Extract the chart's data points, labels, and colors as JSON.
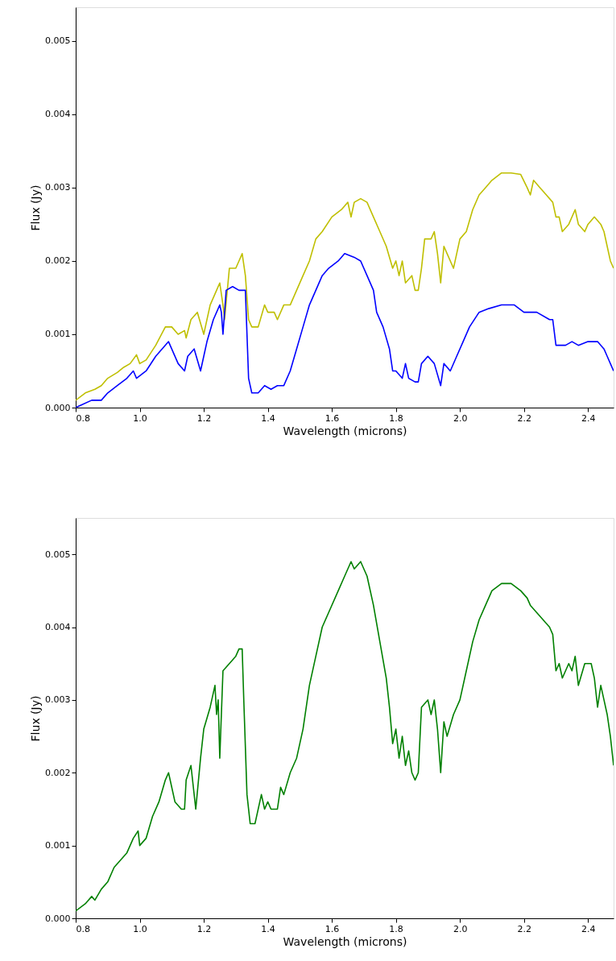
{
  "chart_data": [
    {
      "type": "line",
      "xlabel": "Wavelength (microns)",
      "ylabel": "Flux (Jy)",
      "xlim": [
        0.8,
        2.48
      ],
      "ylim": [
        0,
        0.00546
      ],
      "grid": false,
      "legend": false,
      "marker": "none",
      "line_style": "solid",
      "xticks": [
        {
          "value": 0.8,
          "label": "0.8"
        },
        {
          "value": 1.0,
          "label": "1.0"
        },
        {
          "value": 1.2,
          "label": "1.2"
        },
        {
          "value": 1.4,
          "label": "1.4"
        },
        {
          "value": 1.6,
          "label": "1.6"
        },
        {
          "value": 1.8,
          "label": "1.8"
        },
        {
          "value": 2.0,
          "label": "2.0"
        },
        {
          "value": 2.2,
          "label": "2.2"
        },
        {
          "value": 2.4,
          "label": "2.4"
        }
      ],
      "yticks": [
        {
          "value": 0,
          "label": "0.000"
        },
        {
          "value": 0.001,
          "label": "0.001"
        },
        {
          "value": 0.002,
          "label": "0.002"
        },
        {
          "value": 0.003,
          "label": "0.003"
        },
        {
          "value": 0.004,
          "label": "0.004"
        },
        {
          "value": 0.005,
          "label": "0.005"
        }
      ],
      "series": [
        {
          "color": "#bfbf00",
          "x": [
            0.8,
            0.83,
            0.86,
            0.88,
            0.9,
            0.93,
            0.95,
            0.97,
            0.99,
            1.0,
            1.02,
            1.05,
            1.08,
            1.1,
            1.12,
            1.14,
            1.145,
            1.16,
            1.18,
            1.2,
            1.22,
            1.24,
            1.25,
            1.26,
            1.265,
            1.28,
            1.3,
            1.31,
            1.32,
            1.33,
            1.34,
            1.35,
            1.37,
            1.39,
            1.4,
            1.42,
            1.43,
            1.45,
            1.47,
            1.49,
            1.51,
            1.53,
            1.55,
            1.57,
            1.6,
            1.63,
            1.65,
            1.66,
            1.67,
            1.69,
            1.71,
            1.73,
            1.75,
            1.77,
            1.79,
            1.8,
            1.81,
            1.82,
            1.83,
            1.85,
            1.86,
            1.87,
            1.88,
            1.89,
            1.91,
            1.92,
            1.93,
            1.94,
            1.95,
            1.96,
            1.98,
            2.0,
            2.02,
            2.04,
            2.06,
            2.08,
            2.1,
            2.13,
            2.16,
            2.19,
            2.21,
            2.22,
            2.23,
            2.25,
            2.27,
            2.29,
            2.3,
            2.31,
            2.32,
            2.34,
            2.36,
            2.37,
            2.39,
            2.4,
            2.42,
            2.44,
            2.45,
            2.46,
            2.47,
            2.48
          ],
          "values": [
            0.0001,
            0.0002,
            0.00025,
            0.0003,
            0.0004,
            0.00048,
            0.00055,
            0.0006,
            0.00072,
            0.0006,
            0.00065,
            0.00085,
            0.0011,
            0.0011,
            0.001,
            0.00105,
            0.00095,
            0.0012,
            0.0013,
            0.001,
            0.0014,
            0.0016,
            0.0017,
            0.0014,
            0.0012,
            0.0019,
            0.0019,
            0.002,
            0.0021,
            0.0018,
            0.0012,
            0.0011,
            0.0011,
            0.0014,
            0.0013,
            0.0013,
            0.0012,
            0.0014,
            0.0014,
            0.0016,
            0.0018,
            0.002,
            0.0023,
            0.0024,
            0.0026,
            0.0027,
            0.0028,
            0.0026,
            0.0028,
            0.00285,
            0.0028,
            0.0026,
            0.0024,
            0.0022,
            0.0019,
            0.002,
            0.0018,
            0.002,
            0.0017,
            0.0018,
            0.0016,
            0.0016,
            0.0019,
            0.0023,
            0.0023,
            0.0024,
            0.0021,
            0.0017,
            0.0022,
            0.0021,
            0.0019,
            0.0023,
            0.0024,
            0.0027,
            0.0029,
            0.003,
            0.0031,
            0.0032,
            0.0032,
            0.00318,
            0.003,
            0.0029,
            0.0031,
            0.003,
            0.0029,
            0.0028,
            0.0026,
            0.0026,
            0.0024,
            0.0025,
            0.0027,
            0.0025,
            0.0024,
            0.0025,
            0.0026,
            0.0025,
            0.0024,
            0.0022,
            0.002,
            0.0019
          ]
        },
        {
          "color": "#0000ff",
          "x": [
            0.8,
            0.85,
            0.88,
            0.9,
            0.93,
            0.96,
            0.98,
            0.99,
            1.02,
            1.05,
            1.09,
            1.12,
            1.14,
            1.15,
            1.17,
            1.19,
            1.21,
            1.23,
            1.25,
            1.255,
            1.26,
            1.27,
            1.29,
            1.31,
            1.33,
            1.34,
            1.35,
            1.37,
            1.39,
            1.41,
            1.43,
            1.45,
            1.47,
            1.49,
            1.51,
            1.53,
            1.55,
            1.57,
            1.59,
            1.62,
            1.64,
            1.67,
            1.69,
            1.71,
            1.73,
            1.74,
            1.76,
            1.78,
            1.79,
            1.8,
            1.82,
            1.83,
            1.84,
            1.86,
            1.87,
            1.88,
            1.9,
            1.92,
            1.94,
            1.95,
            1.97,
            1.99,
            2.01,
            2.03,
            2.06,
            2.09,
            2.13,
            2.17,
            2.2,
            2.24,
            2.28,
            2.29,
            2.3,
            2.33,
            2.35,
            2.37,
            2.4,
            2.43,
            2.45,
            2.46,
            2.47,
            2.48
          ],
          "values": [
            0.0,
            0.0001,
            0.0001,
            0.0002,
            0.0003,
            0.0004,
            0.0005,
            0.0004,
            0.0005,
            0.0007,
            0.0009,
            0.0006,
            0.0005,
            0.0007,
            0.0008,
            0.0005,
            0.0009,
            0.0012,
            0.0014,
            0.0013,
            0.001,
            0.0016,
            0.00165,
            0.0016,
            0.0016,
            0.0004,
            0.0002,
            0.0002,
            0.0003,
            0.00025,
            0.0003,
            0.0003,
            0.0005,
            0.0008,
            0.0011,
            0.0014,
            0.0016,
            0.0018,
            0.0019,
            0.002,
            0.0021,
            0.00205,
            0.002,
            0.0018,
            0.0016,
            0.0013,
            0.0011,
            0.0008,
            0.0005,
            0.0005,
            0.0004,
            0.0006,
            0.0004,
            0.00035,
            0.00035,
            0.0006,
            0.0007,
            0.0006,
            0.0003,
            0.0006,
            0.0005,
            0.0007,
            0.0009,
            0.0011,
            0.0013,
            0.00135,
            0.0014,
            0.0014,
            0.0013,
            0.0013,
            0.0012,
            0.0012,
            0.00085,
            0.00085,
            0.0009,
            0.00085,
            0.0009,
            0.0009,
            0.0008,
            0.0007,
            0.0006,
            0.0005
          ]
        }
      ]
    },
    {
      "type": "line",
      "xlabel": "Wavelength (microns)",
      "ylabel": "Flux (Jy)",
      "xlim": [
        0.8,
        2.48
      ],
      "ylim": [
        0,
        0.0055
      ],
      "grid": false,
      "legend": false,
      "marker": "none",
      "line_style": "solid",
      "xticks": [
        {
          "value": 0.8,
          "label": "0.8"
        },
        {
          "value": 1.0,
          "label": "1.0"
        },
        {
          "value": 1.2,
          "label": "1.2"
        },
        {
          "value": 1.4,
          "label": "1.4"
        },
        {
          "value": 1.6,
          "label": "1.6"
        },
        {
          "value": 1.8,
          "label": "1.8"
        },
        {
          "value": 2.0,
          "label": "2.0"
        },
        {
          "value": 2.2,
          "label": "2.2"
        },
        {
          "value": 2.4,
          "label": "2.4"
        }
      ],
      "yticks": [
        {
          "value": 0,
          "label": "0.000"
        },
        {
          "value": 0.001,
          "label": "0.001"
        },
        {
          "value": 0.002,
          "label": "0.002"
        },
        {
          "value": 0.003,
          "label": "0.003"
        },
        {
          "value": 0.004,
          "label": "0.004"
        },
        {
          "value": 0.005,
          "label": "0.005"
        }
      ],
      "series": [
        {
          "color": "#008000",
          "x": [
            0.8,
            0.83,
            0.85,
            0.86,
            0.88,
            0.9,
            0.92,
            0.94,
            0.96,
            0.98,
            0.995,
            1.0,
            1.02,
            1.04,
            1.06,
            1.08,
            1.09,
            1.11,
            1.13,
            1.14,
            1.145,
            1.16,
            1.175,
            1.19,
            1.2,
            1.22,
            1.235,
            1.24,
            1.245,
            1.25,
            1.26,
            1.28,
            1.3,
            1.31,
            1.32,
            1.325,
            1.335,
            1.345,
            1.36,
            1.38,
            1.39,
            1.4,
            1.41,
            1.43,
            1.44,
            1.45,
            1.47,
            1.49,
            1.51,
            1.53,
            1.55,
            1.57,
            1.59,
            1.62,
            1.64,
            1.66,
            1.67,
            1.69,
            1.71,
            1.73,
            1.75,
            1.77,
            1.78,
            1.79,
            1.8,
            1.81,
            1.82,
            1.83,
            1.84,
            1.85,
            1.86,
            1.87,
            1.88,
            1.9,
            1.91,
            1.92,
            1.93,
            1.94,
            1.95,
            1.96,
            1.98,
            2.0,
            2.02,
            2.04,
            2.06,
            2.08,
            2.1,
            2.13,
            2.16,
            2.19,
            2.21,
            2.22,
            2.24,
            2.26,
            2.28,
            2.29,
            2.3,
            2.31,
            2.32,
            2.34,
            2.35,
            2.36,
            2.37,
            2.39,
            2.41,
            2.42,
            2.43,
            2.44,
            2.45,
            2.46,
            2.47,
            2.48
          ],
          "values": [
            0.0001,
            0.0002,
            0.0003,
            0.00025,
            0.0004,
            0.0005,
            0.0007,
            0.0008,
            0.0009,
            0.0011,
            0.0012,
            0.001,
            0.0011,
            0.0014,
            0.0016,
            0.0019,
            0.002,
            0.0016,
            0.0015,
            0.0015,
            0.0019,
            0.0021,
            0.0015,
            0.0022,
            0.0026,
            0.0029,
            0.0032,
            0.0028,
            0.003,
            0.0022,
            0.0034,
            0.0035,
            0.0036,
            0.0037,
            0.0037,
            0.003,
            0.0017,
            0.0013,
            0.0013,
            0.0017,
            0.0015,
            0.0016,
            0.0015,
            0.0015,
            0.0018,
            0.0017,
            0.002,
            0.0022,
            0.0026,
            0.0032,
            0.0036,
            0.004,
            0.0042,
            0.0045,
            0.0047,
            0.0049,
            0.0048,
            0.0049,
            0.0047,
            0.0043,
            0.0038,
            0.0033,
            0.0029,
            0.0024,
            0.0026,
            0.0022,
            0.0025,
            0.0021,
            0.0023,
            0.002,
            0.0019,
            0.002,
            0.0029,
            0.003,
            0.0028,
            0.003,
            0.0026,
            0.002,
            0.0027,
            0.0025,
            0.0028,
            0.003,
            0.0034,
            0.0038,
            0.0041,
            0.0043,
            0.0045,
            0.0046,
            0.0046,
            0.0045,
            0.0044,
            0.0043,
            0.0042,
            0.0041,
            0.004,
            0.0039,
            0.0034,
            0.0035,
            0.0033,
            0.0035,
            0.0034,
            0.0036,
            0.0032,
            0.0035,
            0.0035,
            0.0033,
            0.0029,
            0.0032,
            0.003,
            0.0028,
            0.0025,
            0.0021
          ]
        }
      ]
    }
  ]
}
